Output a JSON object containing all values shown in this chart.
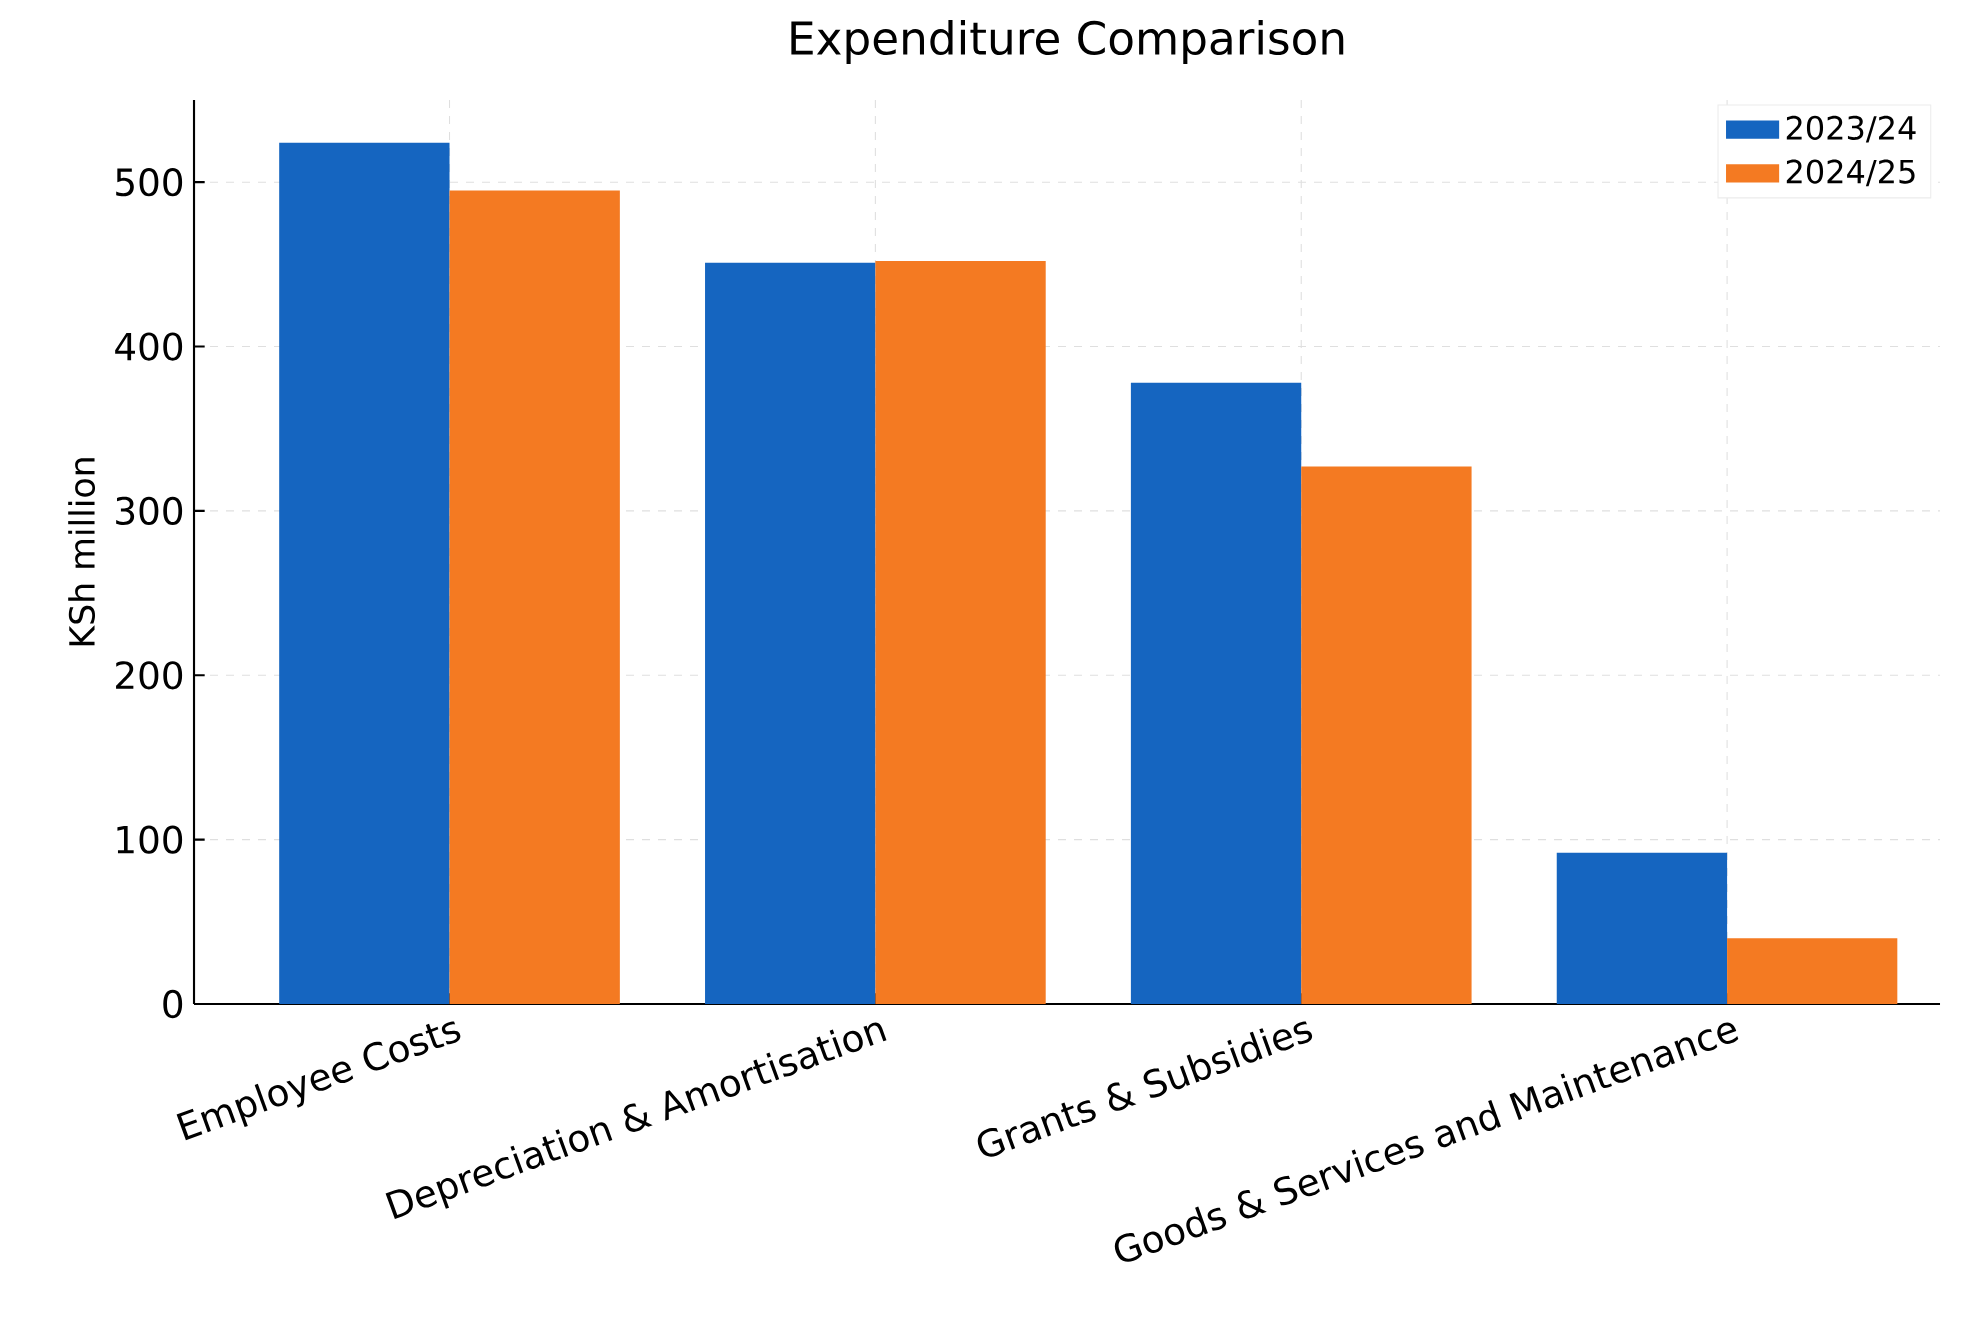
{
  "chart_data": {
    "type": "bar",
    "title": "Expenditure Comparison",
    "ylabel": "KSh million",
    "categories": [
      "Employee Costs",
      "Depreciation & Amortisation",
      "Grants & Subsidies",
      "Goods & Services and Maintenance"
    ],
    "series": [
      {
        "name": "2023/24",
        "color": "#1565c0",
        "values": [
          524,
          451,
          378,
          92
        ]
      },
      {
        "name": "2024/25",
        "color": "#f47a22",
        "values": [
          495,
          452,
          327,
          40
        ]
      }
    ],
    "ylim": [
      0,
      550
    ],
    "yticks": [
      0,
      100,
      200,
      300,
      400,
      500
    ],
    "grid": true,
    "legend": "top right"
  }
}
